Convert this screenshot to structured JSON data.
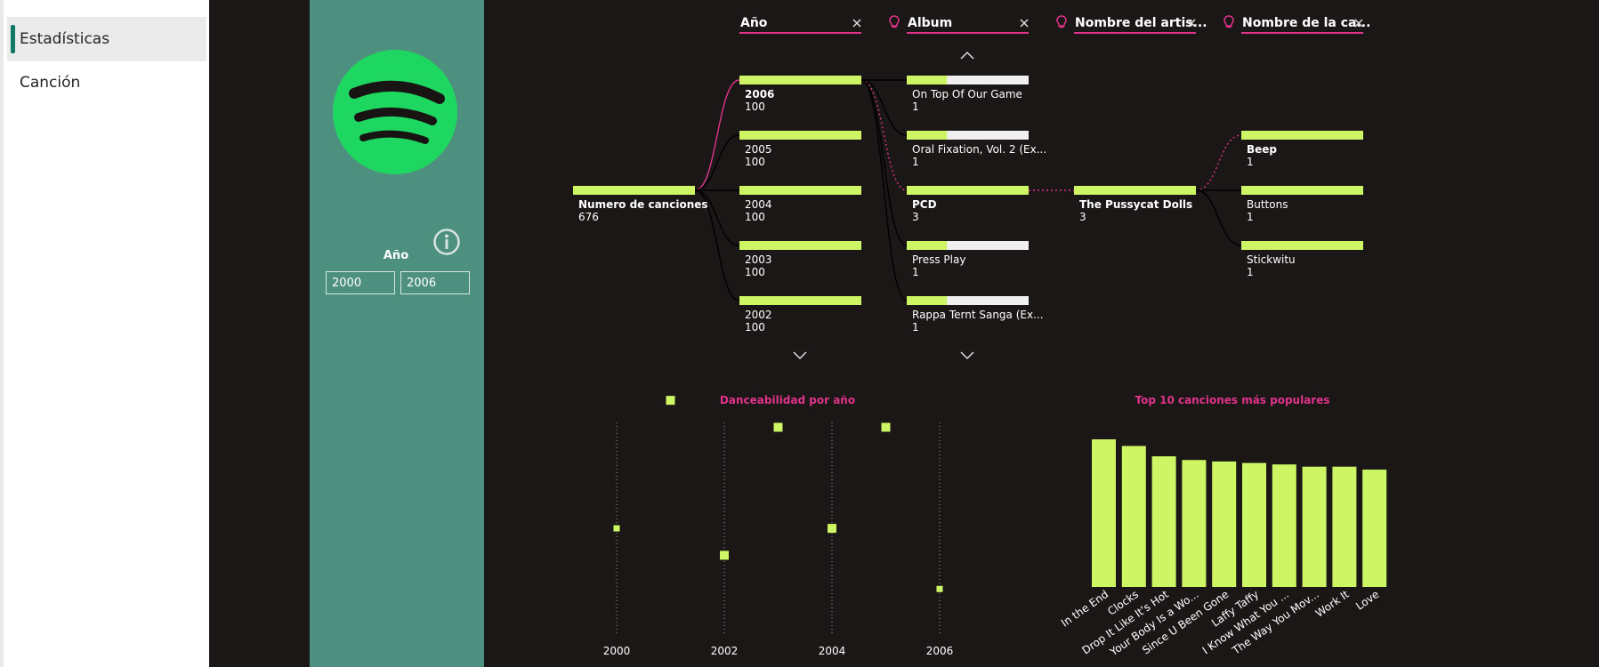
{
  "nav": {
    "items": [
      {
        "label": "Estadísticas",
        "active": true
      },
      {
        "label": "Canción",
        "active": false
      }
    ]
  },
  "filter": {
    "label": "Año",
    "from": "2000",
    "to": "2006"
  },
  "colors": {
    "bar": "#cdf564",
    "accent": "#e0338a",
    "canvas": "#1b1716",
    "panel": "#4e9080",
    "spotify": "#1ed760"
  },
  "tree": {
    "root": {
      "label": "Numero de canciones",
      "value": "676"
    },
    "headers": [
      {
        "label": "Año",
        "bulb": false
      },
      {
        "label": "Album",
        "bulb": true
      },
      {
        "label": "Nombre del artis...",
        "bulb": true
      },
      {
        "label": "Nombre de la ca...",
        "bulb": true
      }
    ],
    "levels": [
      {
        "nodes": [
          {
            "label": "2006",
            "value": "100",
            "fill": 1.0,
            "selected": true
          },
          {
            "label": "2005",
            "value": "100",
            "fill": 1.0,
            "selected": false
          },
          {
            "label": "2004",
            "value": "100",
            "fill": 1.0,
            "selected": false
          },
          {
            "label": "2003",
            "value": "100",
            "fill": 1.0,
            "selected": false
          },
          {
            "label": "2002",
            "value": "100",
            "fill": 1.0,
            "selected": false
          }
        ]
      },
      {
        "nodes": [
          {
            "label": "On Top Of Our Game",
            "value": "1",
            "fill": 0.33,
            "selected": false
          },
          {
            "label": "Oral Fixation, Vol. 2 (Ex...",
            "value": "1",
            "fill": 0.33,
            "selected": false
          },
          {
            "label": "PCD",
            "value": "3",
            "fill": 1.0,
            "selected": true
          },
          {
            "label": "Press Play",
            "value": "1",
            "fill": 0.33,
            "selected": false
          },
          {
            "label": "Rappa Ternt Sanga (Ex...",
            "value": "1",
            "fill": 0.33,
            "selected": false
          }
        ]
      },
      {
        "nodes": [
          {
            "label": "The Pussycat Dolls",
            "value": "3",
            "fill": 1.0,
            "selected": true
          }
        ]
      },
      {
        "nodes": [
          {
            "label": "Beep",
            "value": "1",
            "fill": 1.0,
            "selected": true
          },
          {
            "label": "Buttons",
            "value": "1",
            "fill": 1.0,
            "selected": false
          },
          {
            "label": "Stickwitu",
            "value": "1",
            "fill": 1.0,
            "selected": false
          }
        ]
      }
    ]
  },
  "chart_data": [
    {
      "type": "scatter",
      "title": "Danceabilidad por año",
      "x": [
        2000,
        2001,
        2002,
        2003,
        2004,
        2005,
        2006
      ],
      "y": [
        0.56,
        0.75,
        0.52,
        0.71,
        0.56,
        0.71,
        0.47
      ],
      "xticks": [
        "2000",
        "2002",
        "2004",
        "2006"
      ],
      "xlim": [
        2000,
        2006
      ],
      "ylim": [
        0.44,
        0.77
      ],
      "grid": "vertical-dotted"
    },
    {
      "type": "bar",
      "title": "Top 10 canciones más populares",
      "categories": [
        "In the End",
        "Clocks",
        "Drop It Like It's Hot",
        "Your Body Is a Wo...",
        "Since U Been Gone",
        "Laffy Taffy",
        "I Know What You ...",
        "The Way You Mov...",
        "Work It",
        "Love"
      ],
      "values": [
        100,
        95.5,
        88.5,
        86,
        85,
        84,
        83,
        81.5,
        81.5,
        79.5
      ],
      "ylim": [
        0,
        100
      ]
    }
  ]
}
